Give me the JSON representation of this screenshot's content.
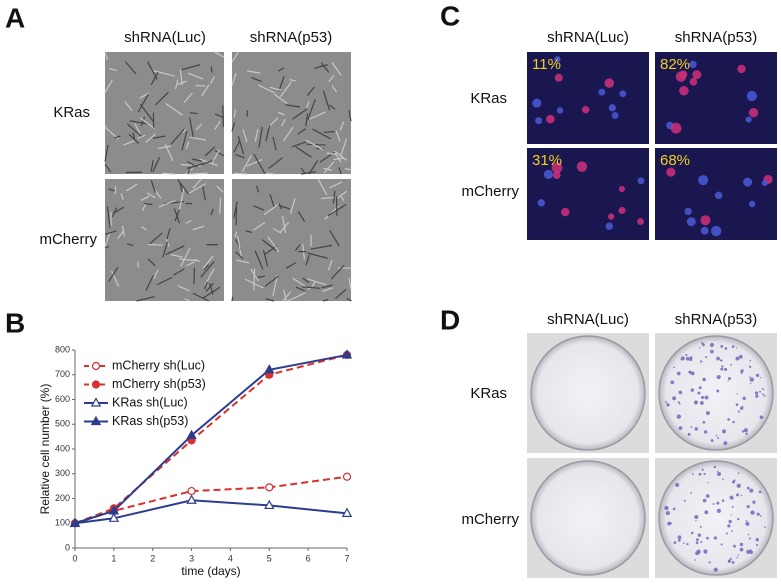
{
  "panel_a": {
    "label": "A",
    "columns": [
      "shRNA(Luc)",
      "shRNA(p53)"
    ],
    "rows": [
      "KRas",
      "mCherry"
    ]
  },
  "panel_c": {
    "label": "C",
    "columns": [
      "shRNA(Luc)",
      "shRNA(p53)"
    ],
    "rows": [
      "KRas",
      "mCherry"
    ],
    "percentages": [
      [
        "11%",
        "82%"
      ],
      [
        "31%",
        "68%"
      ]
    ]
  },
  "panel_d": {
    "label": "D",
    "columns": [
      "shRNA(Luc)",
      "shRNA(p53)"
    ],
    "rows": [
      "KRas",
      "mCherry"
    ]
  },
  "chart_data": {
    "type": "line",
    "panel_label": "B",
    "x_label": "time (days)",
    "y_label": "Relative cell number (%)",
    "x": [
      0,
      1,
      3,
      5,
      7
    ],
    "xlim": [
      0,
      7
    ],
    "xticks": [
      0,
      1,
      2,
      3,
      4,
      5,
      6,
      7
    ],
    "ylim": [
      0,
      800
    ],
    "yticks": [
      0,
      100,
      200,
      300,
      400,
      500,
      600,
      700,
      800
    ],
    "series": [
      {
        "name": "mCherry sh(Luc)",
        "color": "#d8302c",
        "dashed": true,
        "marker": "circle",
        "filled": false,
        "values": [
          100,
          150,
          230,
          245,
          288
        ]
      },
      {
        "name": "mCherry sh(p53)",
        "color": "#d8302c",
        "dashed": true,
        "marker": "circle",
        "filled": true,
        "values": [
          100,
          160,
          435,
          700,
          780
        ]
      },
      {
        "name": "KRas sh(Luc)",
        "color": "#2c3d8f",
        "dashed": false,
        "marker": "triangle",
        "filled": false,
        "values": [
          100,
          120,
          193,
          172,
          140
        ]
      },
      {
        "name": "KRas sh(p53)",
        "color": "#2c3d8f",
        "dashed": false,
        "marker": "triangle",
        "filled": true,
        "values": [
          100,
          150,
          455,
          720,
          780
        ]
      }
    ]
  }
}
